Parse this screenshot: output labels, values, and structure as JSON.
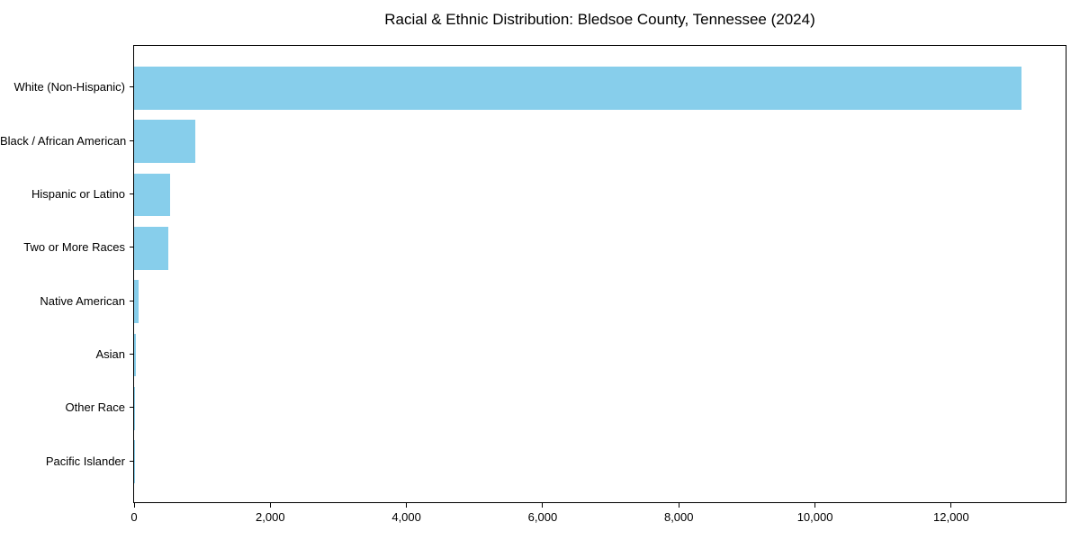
{
  "title": "Racial & Ethnic Distribution: Bledsoe County, Tennessee (2024)",
  "chart_data": {
    "type": "bar",
    "orientation": "horizontal",
    "title": "Racial & Ethnic Distribution: Bledsoe County, Tennessee (2024)",
    "categories": [
      "White (Non-Hispanic)",
      "Black / African American",
      "Hispanic or Latino",
      "Two or More Races",
      "Native American",
      "Asian",
      "Other Race",
      "Pacific Islander"
    ],
    "values": [
      13030,
      900,
      525,
      505,
      72,
      20,
      6,
      2
    ],
    "xlabel": "",
    "ylabel": "",
    "xlim": [
      0,
      13680
    ],
    "x_ticks": [
      {
        "value": 0,
        "label": "0"
      },
      {
        "value": 2000,
        "label": "2,000"
      },
      {
        "value": 4000,
        "label": "4,000"
      },
      {
        "value": 6000,
        "label": "6,000"
      },
      {
        "value": 8000,
        "label": "8,000"
      },
      {
        "value": 10000,
        "label": "10,000"
      },
      {
        "value": 12000,
        "label": "12,000"
      }
    ],
    "grid": false,
    "legend": null,
    "bar_color": "#87CEEB",
    "axis_color": "#000000",
    "text_color": "#000000",
    "background_color": "#ffffff"
  }
}
